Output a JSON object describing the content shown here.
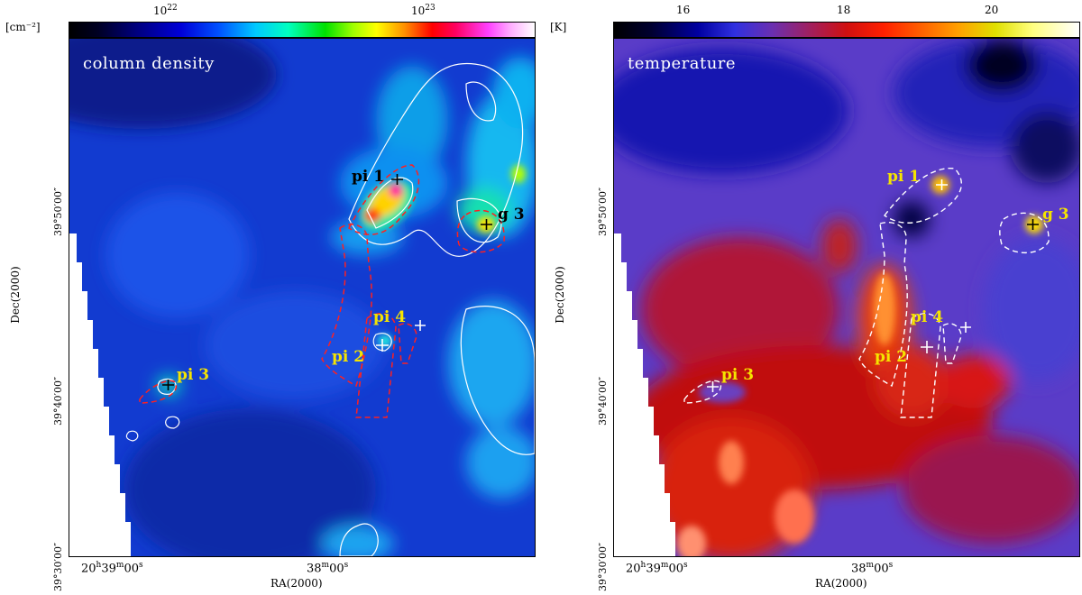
{
  "left_panel": {
    "title": "column density",
    "colorbar": {
      "unit": "[cm⁻²]",
      "tick_1_base": "10",
      "tick_1_exp": "22",
      "tick_2_base": "10",
      "tick_2_exp": "23"
    },
    "y_axis_label": "Dec(2000)",
    "x_axis_label": "RA(2000)",
    "y_ticks": [
      "39°50′00″",
      "39°40′00″",
      "39°30′00″"
    ],
    "x_tick_1": {
      "main": "20",
      "h": "h",
      "mid": "39",
      "m": "m",
      "sec": "00",
      "s": "s"
    },
    "x_tick_2": {
      "main": "38",
      "m": "m",
      "sec": "00",
      "s": "s"
    },
    "sources": [
      "pi 1",
      "g 3",
      "pi 4",
      "pi 2",
      "pi 3"
    ]
  },
  "right_panel": {
    "title": "temperature",
    "colorbar": {
      "unit": "[K]",
      "ticks": [
        "16",
        "18",
        "20"
      ]
    },
    "y_axis_label": "Dec(2000)",
    "x_axis_label": "RA(2000)",
    "y_ticks": [
      "39°50′00″",
      "39°40′00″",
      "39°30′00″"
    ],
    "x_tick_1": {
      "main": "20",
      "h": "h",
      "mid": "39",
      "m": "m",
      "sec": "00",
      "s": "s"
    },
    "x_tick_2": {
      "main": "38",
      "m": "m",
      "sec": "00",
      "s": "s"
    },
    "sources": [
      "pi 1",
      "g 3",
      "pi 4",
      "pi 2",
      "pi 3"
    ]
  },
  "colors": {
    "source_label": "#f5e400",
    "contour_left": "#ffffff",
    "dashed_left": "#ff2020",
    "dashed_right": "#ffffff"
  }
}
